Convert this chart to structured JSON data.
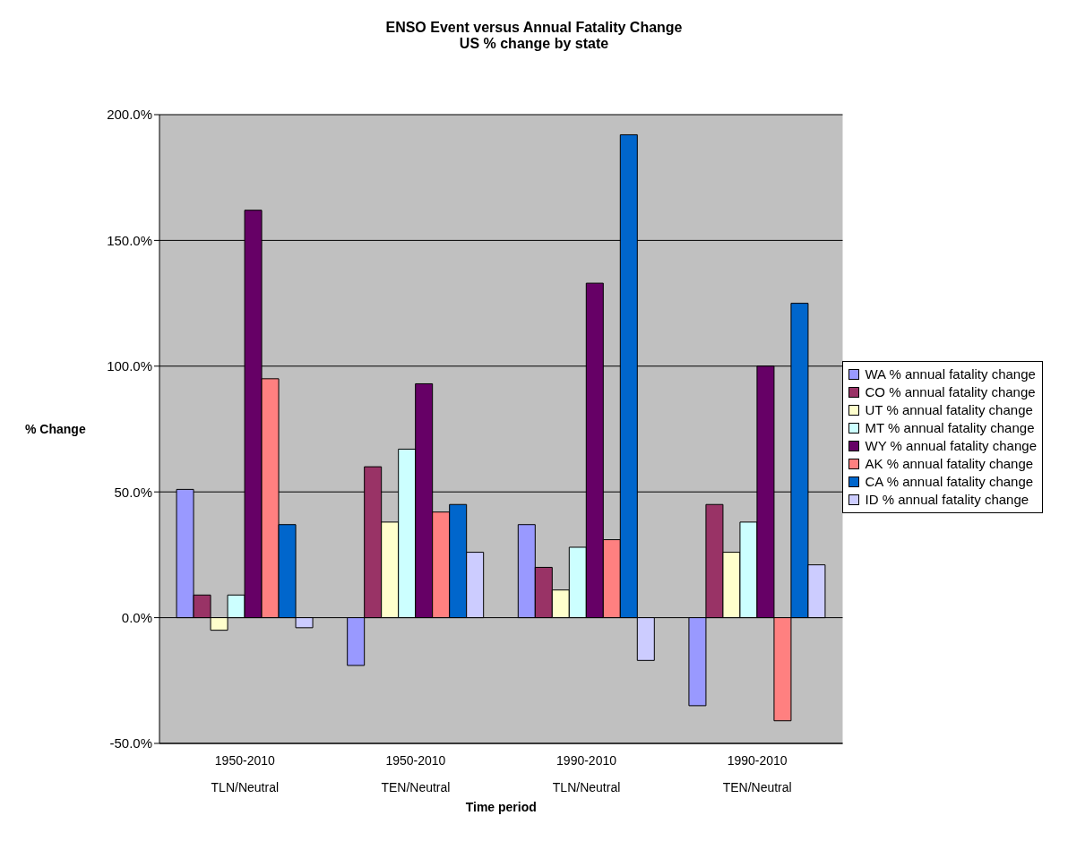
{
  "chart_data": {
    "type": "bar",
    "title": "ENSO Event versus Annual Fatality Change",
    "subtitle": "US % change by state",
    "xlabel": "Time period",
    "ylabel": "% Change",
    "categories": [
      "1950-2010\nTLN/Neutral",
      "1950-2010\nTEN/Neutral",
      "1990-2010\nTLN/Neutral",
      "1990-2010\nTEN/Neutral"
    ],
    "series": [
      {
        "name": "WA % annual fatality change",
        "color": "#9999ff",
        "values": [
          51,
          -19,
          37,
          -35
        ]
      },
      {
        "name": "CO % annual fatality change",
        "color": "#993366",
        "values": [
          9,
          60,
          20,
          45
        ]
      },
      {
        "name": "UT % annual fatality change",
        "color": "#ffffcc",
        "values": [
          -5,
          38,
          11,
          26
        ]
      },
      {
        "name": "MT % annual fatality change",
        "color": "#ccffff",
        "values": [
          9,
          67,
          28,
          38
        ]
      },
      {
        "name": "WY % annual fatality change",
        "color": "#660066",
        "values": [
          162,
          93,
          133,
          100
        ]
      },
      {
        "name": "AK % annual fatality change",
        "color": "#ff8080",
        "values": [
          95,
          42,
          31,
          -41
        ]
      },
      {
        "name": "CA % annual fatality change",
        "color": "#0066cc",
        "values": [
          37,
          45,
          192,
          125
        ]
      },
      {
        "name": "ID % annual fatality change",
        "color": "#ccccff",
        "values": [
          -4,
          26,
          -17,
          21
        ]
      }
    ],
    "ylim": [
      -50,
      200
    ],
    "yticks": [
      {
        "value": -50,
        "label": "-50.0%"
      },
      {
        "value": 0,
        "label": "0.0%"
      },
      {
        "value": 50,
        "label": "50.0%"
      },
      {
        "value": 100,
        "label": "100.0%"
      },
      {
        "value": 150,
        "label": "150.0%"
      },
      {
        "value": 200,
        "label": "200.0%"
      }
    ],
    "grid": "y",
    "legend": "right"
  }
}
